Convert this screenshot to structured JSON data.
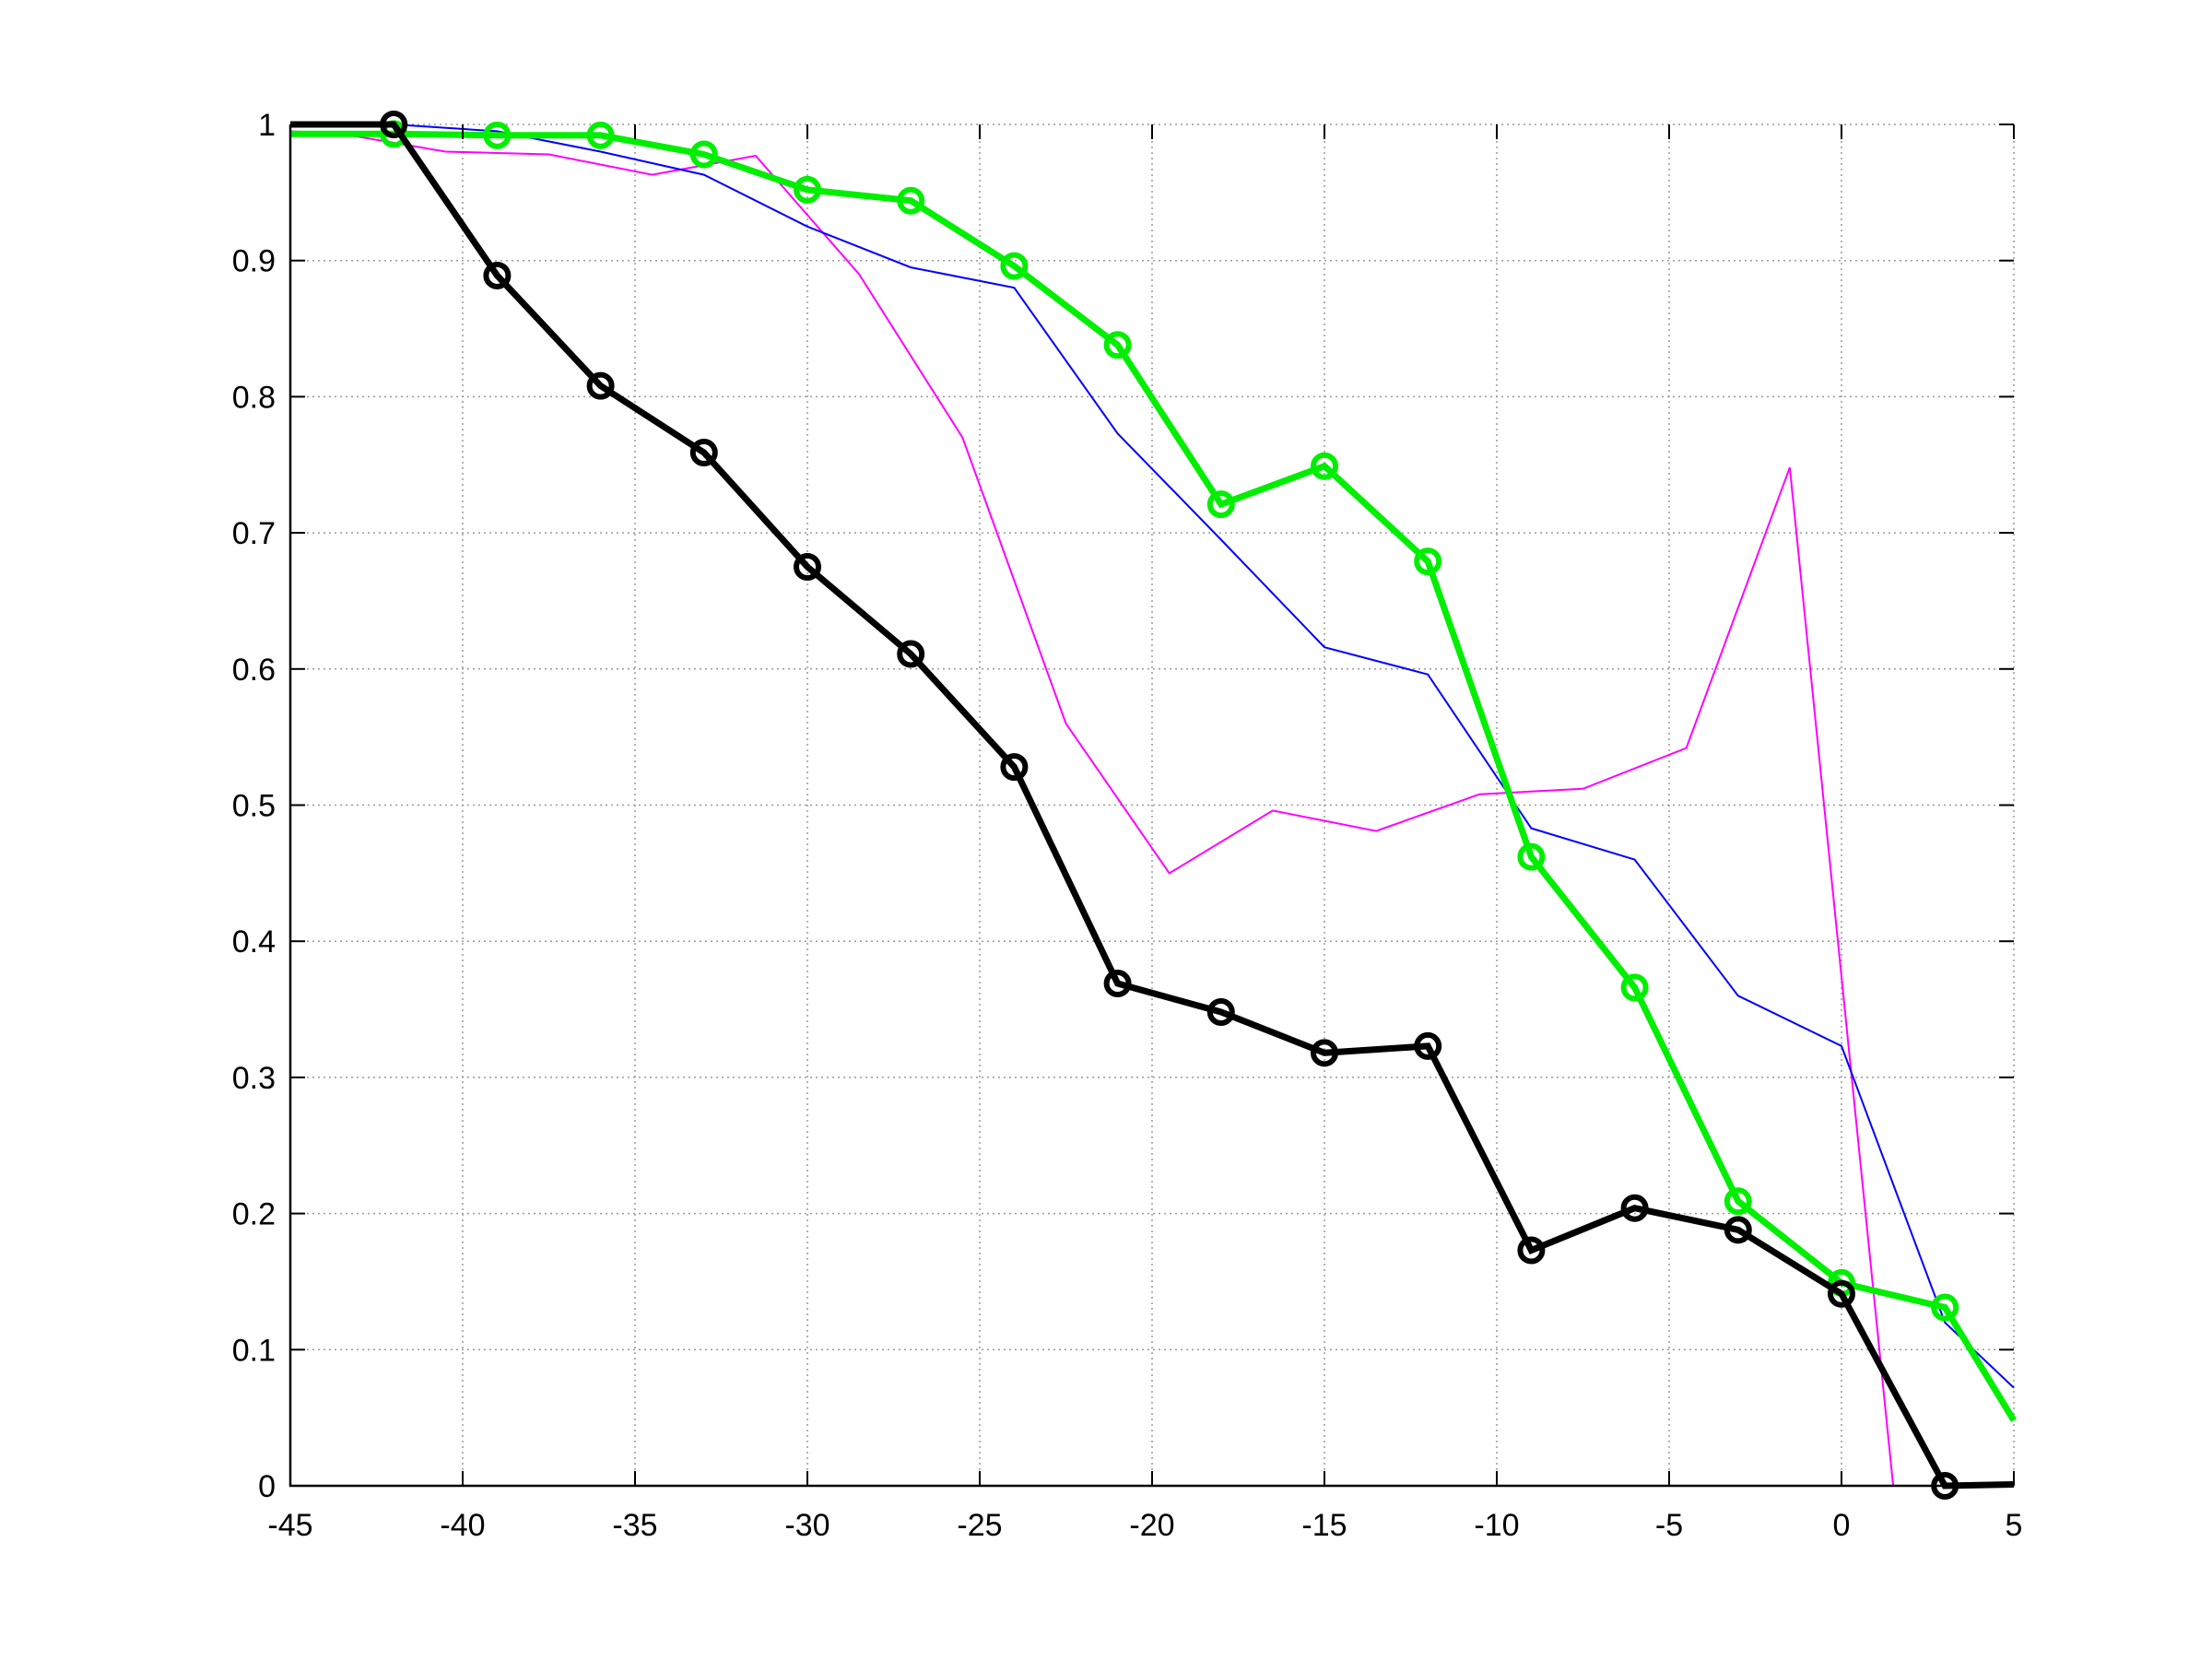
{
  "chart_data": {
    "type": "line",
    "title": "",
    "xlabel": "",
    "ylabel": "",
    "xlim": [
      -45,
      5
    ],
    "ylim": [
      0,
      1
    ],
    "grid": true,
    "x_ticks": [
      -45,
      -40,
      -35,
      -30,
      -25,
      -20,
      -15,
      -10,
      -5,
      0,
      5
    ],
    "y_ticks": [
      0,
      0.1,
      0.2,
      0.3,
      0.4,
      0.5,
      0.6,
      0.7,
      0.8,
      0.9,
      1
    ],
    "x_tick_labels": [
      "-45",
      "-40",
      "-35",
      "-30",
      "-25",
      "-20",
      "-15",
      "-10",
      "-5",
      "0",
      "5"
    ],
    "y_tick_labels": [
      "0",
      "0.1",
      "0.2",
      "0.3",
      "0.4",
      "0.5",
      "0.6",
      "0.7",
      "0.8",
      "0.9",
      "1"
    ],
    "series": [
      {
        "color": "#ff00ff",
        "style": "thin-line",
        "x": [
          -45,
          -43.5,
          -40.5,
          -37.5,
          -34.5,
          -31.5,
          -28.5,
          -25.5,
          -22.5,
          -19.5,
          -16.5,
          -13.5,
          -10.5,
          -7.5,
          -4.5,
          -1.5,
          1.5,
          5
        ],
        "y": [
          0.995,
          0.993,
          0.98,
          0.978,
          0.963,
          0.977,
          0.89,
          0.77,
          0.56,
          0.45,
          0.496,
          0.481,
          0.508,
          0.512,
          0.542,
          0.748,
          0.0,
          0.0
        ]
      },
      {
        "color": "#0000ff",
        "style": "thin-line",
        "x": [
          -45,
          -42,
          -39,
          -36,
          -33,
          -30,
          -27,
          -24,
          -21,
          -18,
          -15,
          -12,
          -9,
          -6,
          -3,
          0,
          3,
          5
        ],
        "y": [
          1.0,
          1.0,
          0.995,
          0.98,
          0.963,
          0.925,
          0.895,
          0.88,
          0.773,
          0.695,
          0.616,
          0.596,
          0.483,
          0.46,
          0.36,
          0.323,
          0.12,
          0.072
        ]
      },
      {
        "color": "#00ee00",
        "style": "thick-line-circles",
        "x": [
          -45,
          -42,
          -39,
          -36,
          -33,
          -30,
          -27,
          -24,
          -21,
          -18,
          -15,
          -12,
          -9,
          -6,
          -3,
          0,
          3,
          5
        ],
        "y": [
          0.993,
          0.993,
          0.992,
          0.992,
          0.978,
          0.952,
          0.944,
          0.896,
          0.838,
          0.721,
          0.749,
          0.679,
          0.462,
          0.366,
          0.209,
          0.149,
          0.131,
          0.048
        ],
        "markers_from_index": 1
      },
      {
        "color": "#000000",
        "style": "thick-line-circles",
        "x": [
          -45,
          -42,
          -39,
          -36,
          -33,
          -30,
          -27,
          -24,
          -21,
          -18,
          -15,
          -12,
          -9,
          -6,
          -3,
          0,
          3,
          5
        ],
        "y": [
          1.0,
          1.0,
          0.889,
          0.808,
          0.759,
          0.675,
          0.611,
          0.528,
          0.369,
          0.348,
          0.318,
          0.323,
          0.173,
          0.204,
          0.188,
          0.141,
          0.0,
          0.001
        ],
        "markers_from_index": 1
      }
    ]
  }
}
